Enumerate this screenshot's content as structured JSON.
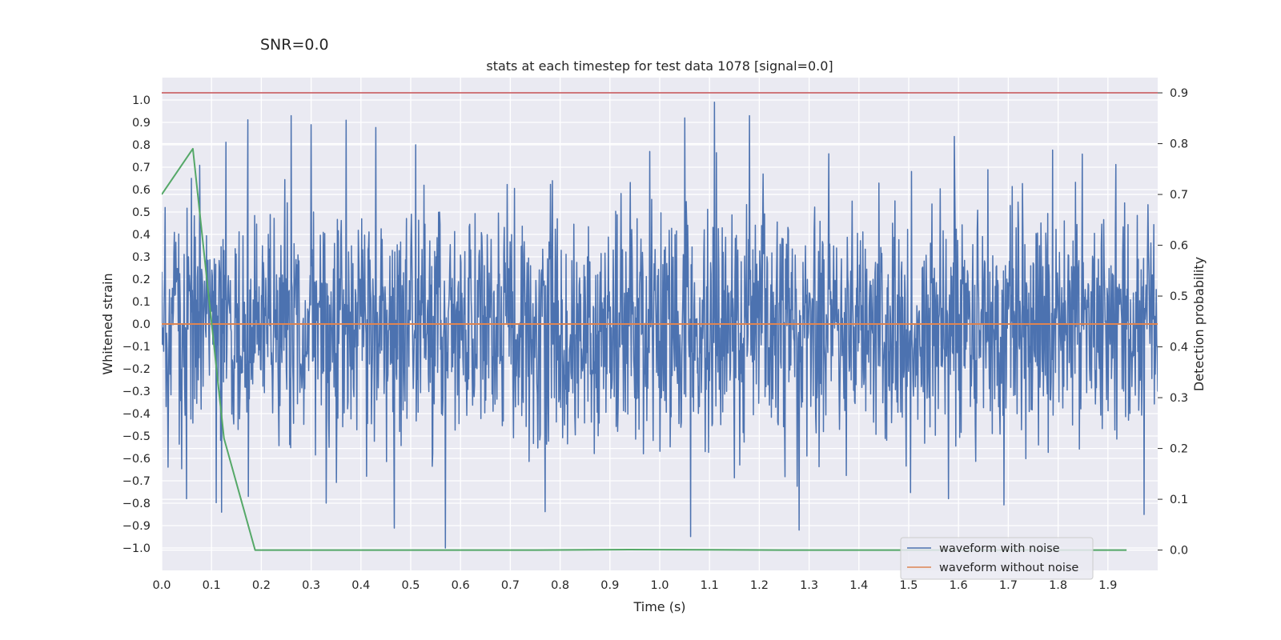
{
  "snr_label": "SNR=0.0",
  "chart_data": {
    "type": "line",
    "title": "stats at each timestep for test data 1078 [signal=0.0]",
    "xlabel": "Time (s)",
    "ylabel": "Whitened strain",
    "y2label": "Detection probability",
    "xlim": [
      0.0,
      2.0
    ],
    "ylim": [
      -1.1,
      1.1
    ],
    "y2lim": [
      -0.04,
      0.93
    ],
    "xticks": [
      "0.0",
      "0.1",
      "0.2",
      "0.3",
      "0.4",
      "0.5",
      "0.6",
      "0.7",
      "0.8",
      "0.9",
      "1.0",
      "1.1",
      "1.2",
      "1.3",
      "1.4",
      "1.5",
      "1.6",
      "1.7",
      "1.8",
      "1.9"
    ],
    "yticks": [
      "1.0",
      "0.9",
      "0.8",
      "0.7",
      "0.6",
      "0.5",
      "0.4",
      "0.3",
      "0.2",
      "0.1",
      "0.0",
      "−0.1",
      "−0.2",
      "−0.3",
      "−0.4",
      "−0.5",
      "−0.6",
      "−0.7",
      "−0.8",
      "−0.9",
      "−1.0"
    ],
    "y2ticks": [
      "0.9",
      "0.8",
      "0.7",
      "0.6",
      "0.5",
      "0.4",
      "0.3",
      "0.2",
      "0.1",
      "0.0"
    ],
    "threshold": 0.9,
    "colors": {
      "noise": "#4c72b0",
      "clean": "#dd8452",
      "probability": "#55a868",
      "threshold": "#c44e52",
      "background": "#eaeaf2",
      "grid": "#ffffff"
    },
    "series": [
      {
        "name": "waveform with noise",
        "description": "dense whitened-strain noise spanning 0.0-2.0 s, mostly within -0.6..0.6",
        "peaks": [
          {
            "x": 0.06,
            "y": 0.65
          },
          {
            "x": 0.05,
            "y": -0.78
          },
          {
            "x": 0.12,
            "y": -0.84
          },
          {
            "x": 0.26,
            "y": 0.93
          },
          {
            "x": 0.37,
            "y": 0.91
          },
          {
            "x": 0.51,
            "y": 0.8
          },
          {
            "x": 0.57,
            "y": -1.0
          },
          {
            "x": 0.98,
            "y": 0.77
          },
          {
            "x": 1.05,
            "y": 0.92
          },
          {
            "x": 1.11,
            "y": 0.99
          },
          {
            "x": 1.18,
            "y": 0.93
          },
          {
            "x": 1.28,
            "y": -0.92
          },
          {
            "x": 1.34,
            "y": 0.76
          },
          {
            "x": 1.58,
            "y": -0.78
          }
        ]
      },
      {
        "name": "waveform without noise",
        "x": [
          0.0,
          2.0
        ],
        "y": [
          0.0,
          0.0
        ]
      },
      {
        "name": "detection probability",
        "axis": "right",
        "x": [
          0.0,
          0.0625,
          0.125,
          0.1875,
          0.25,
          0.5,
          0.75,
          0.9375,
          1.25,
          1.5,
          1.75,
          1.9375
        ],
        "y": [
          0.7,
          0.79,
          0.22,
          0.0,
          0.0,
          0.0,
          0.0,
          0.001,
          0.0,
          0.0,
          0.0,
          0.0
        ]
      }
    ],
    "legend": {
      "position": "lower-right",
      "entries": [
        "waveform with noise",
        "waveform without noise"
      ]
    }
  }
}
